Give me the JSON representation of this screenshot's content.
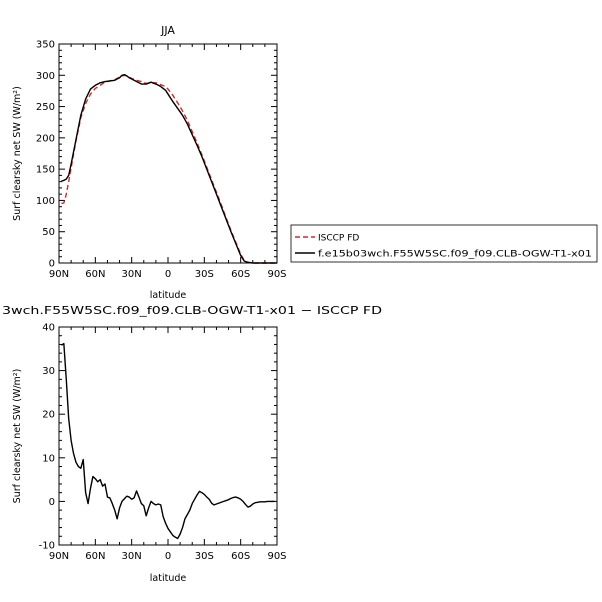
{
  "chart_data": [
    {
      "type": "line",
      "title": "JJA",
      "xlabel": "latitude",
      "ylabel": "Surf clearsky net SW (W/m²)",
      "xlim": [
        90,
        -90
      ],
      "ylim": [
        0,
        350
      ],
      "x_ticks": [
        {
          "value": 90,
          "label": "90N"
        },
        {
          "value": 60,
          "label": "60N"
        },
        {
          "value": 30,
          "label": "30N"
        },
        {
          "value": 0,
          "label": "0"
        },
        {
          "value": -30,
          "label": "30S"
        },
        {
          "value": -60,
          "label": "60S"
        },
        {
          "value": -90,
          "label": "90S"
        }
      ],
      "y_ticks": [
        0,
        50,
        100,
        150,
        200,
        250,
        300,
        350
      ],
      "legend": {
        "placement": "right",
        "entries": [
          {
            "label": "ISCCP FD",
            "color": "#d62728",
            "style": "dashed"
          },
          {
            "label": "f.e15b03wch.F55W5SC.f09_f09.CLB-OGW-T1-x01",
            "color": "#000000",
            "style": "solid"
          }
        ]
      },
      "series": [
        {
          "name": "ISCCP FD",
          "color": "#d62728",
          "style": "dashed",
          "x": [
            88,
            86,
            84,
            82,
            80,
            76,
            72,
            68,
            64,
            60,
            56,
            52,
            48,
            44,
            40,
            38,
            36,
            34,
            32,
            30,
            26,
            22,
            18,
            14,
            10,
            6,
            2,
            0,
            -4,
            -8,
            -12,
            -16,
            -20,
            -24,
            -28,
            -32,
            -36,
            -40,
            -44,
            -48,
            -52,
            -56,
            -60,
            -63,
            -66,
            -70,
            -74,
            -78,
            -82,
            -86,
            -90
          ],
          "y": [
            95,
            96,
            110,
            130,
            152,
            195,
            232,
            255,
            270,
            279,
            284,
            289,
            291,
            293,
            297,
            299,
            300,
            299,
            297,
            295,
            292,
            290,
            287,
            288,
            288,
            285,
            282,
            278,
            268,
            256,
            243,
            228,
            210,
            192,
            173,
            153,
            133,
            113,
            93,
            72,
            52,
            33,
            14,
            4,
            1,
            0,
            0,
            0,
            0,
            0,
            0
          ]
        },
        {
          "name": "f.e15b03wch.F55W5SC.f09_f09.CLB-OGW-T1-x01",
          "color": "#000000",
          "style": "solid",
          "x": [
            88,
            86,
            84,
            82,
            80,
            76,
            72,
            68,
            64,
            60,
            56,
            52,
            48,
            44,
            40,
            38,
            36,
            34,
            32,
            30,
            26,
            22,
            18,
            14,
            10,
            6,
            2,
            0,
            -4,
            -8,
            -12,
            -16,
            -20,
            -24,
            -28,
            -32,
            -36,
            -40,
            -44,
            -48,
            -52,
            -56,
            -60,
            -63,
            -66,
            -70,
            -74,
            -78,
            -82,
            -86,
            -90
          ],
          "y": [
            131,
            132,
            134,
            140,
            158,
            197,
            236,
            262,
            278,
            284,
            288,
            290,
            291,
            292,
            296,
            300,
            301,
            299,
            296,
            294,
            290,
            286,
            286,
            289,
            286,
            282,
            276,
            270,
            258,
            247,
            236,
            222,
            205,
            188,
            170,
            150,
            130,
            110,
            90,
            70,
            50,
            31,
            12,
            3,
            1,
            0,
            0,
            0,
            0,
            0,
            0
          ]
        }
      ]
    },
    {
      "type": "line",
      "title": "3wch.F55W5SC.f09_f09.CLB-OGW-T1-x01 − ISCCP FD",
      "xlabel": "latitude",
      "ylabel": "Surf clearsky net SW (W/m²)",
      "xlim": [
        90,
        -90
      ],
      "ylim": [
        -10,
        40
      ],
      "x_ticks": [
        {
          "value": 90,
          "label": "90N"
        },
        {
          "value": 60,
          "label": "60N"
        },
        {
          "value": 30,
          "label": "30N"
        },
        {
          "value": 0,
          "label": "0"
        },
        {
          "value": -30,
          "label": "30S"
        },
        {
          "value": -60,
          "label": "60S"
        },
        {
          "value": -90,
          "label": "90S"
        }
      ],
      "y_ticks": [
        -10,
        0,
        10,
        20,
        30,
        40
      ],
      "series": [
        {
          "color": "#000000",
          "style": "solid",
          "x": [
            88,
            86,
            84,
            82,
            80,
            78,
            76,
            74,
            72,
            70,
            68,
            66,
            64,
            62,
            60,
            58,
            56,
            54,
            52,
            50,
            48,
            46,
            44,
            42,
            40,
            38,
            36,
            34,
            32,
            30,
            28,
            26,
            24,
            22,
            20,
            18,
            16,
            14,
            12,
            10,
            8,
            6,
            4,
            2,
            0,
            -2,
            -4,
            -6,
            -8,
            -10,
            -12,
            -14,
            -16,
            -18,
            -20,
            -22,
            -24,
            -26,
            -28,
            -30,
            -32,
            -34,
            -36,
            -38,
            -40,
            -42,
            -44,
            -46,
            -48,
            -50,
            -52,
            -54,
            -56,
            -58,
            -60,
            -62,
            -64,
            -66,
            -68,
            -70,
            -72,
            -74,
            -76,
            -78,
            -80,
            -82,
            -84,
            -86,
            -88
          ],
          "y": [
            35.8,
            36.2,
            28,
            19,
            14,
            11,
            9,
            8,
            7.6,
            9.6,
            2,
            -0.5,
            3,
            5.7,
            5.2,
            4.5,
            5,
            3.5,
            4,
            1,
            0.8,
            -0.5,
            -2,
            -4,
            -1.5,
            0,
            0.6,
            1.2,
            1,
            0.5,
            0.8,
            2.4,
            1,
            -0.5,
            -1,
            -3.3,
            -1.5,
            0,
            -0.5,
            -0.8,
            -0.6,
            -0.8,
            -3.5,
            -5,
            -6.2,
            -7,
            -7.8,
            -8.2,
            -8.5,
            -7.5,
            -6,
            -4,
            -3,
            -2,
            -0.5,
            0.5,
            1.5,
            2.3,
            2,
            1.6,
            1,
            0.5,
            -0.4,
            -0.8,
            -0.6,
            -0.4,
            -0.2,
            0,
            0.2,
            0.4,
            0.7,
            0.9,
            1,
            0.8,
            0.5,
            0,
            -0.7,
            -1.3,
            -1.1,
            -0.6,
            -0.3,
            -0.2,
            -0.1,
            -0.1,
            -0.1,
            0,
            0,
            0,
            0
          ]
        }
      ]
    }
  ]
}
